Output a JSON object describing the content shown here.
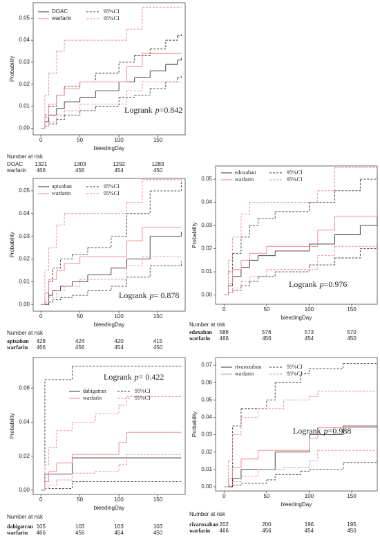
{
  "chart_data": [
    {
      "type": "line",
      "step": true,
      "xlabel": "bleedingDay",
      "ylabel": "Probability",
      "xlim": [
        -10,
        185
      ],
      "xticks": [
        0,
        50,
        100,
        150
      ],
      "ylim": [
        -0.003,
        0.057
      ],
      "yticks": [
        {
          "value": 0,
          "label": "0.00"
        },
        {
          "value": 0.01,
          "label": "0.01"
        },
        {
          "value": 0.02,
          "label": "0.02"
        },
        {
          "value": 0.03,
          "label": "0.03"
        },
        {
          "value": 0.04,
          "label": "0.04"
        },
        {
          "value": 0.05,
          "label": "0.05"
        }
      ],
      "legend": "upper left",
      "series": [
        {
          "name": "DOAC",
          "color": "#333333",
          "ci_name": "95%CI",
          "x": [
            0,
            5,
            10,
            20,
            30,
            50,
            70,
            100,
            120,
            140,
            160,
            175,
            180
          ],
          "values": [
            0,
            0.003,
            0.006,
            0.009,
            0.012,
            0.014,
            0.017,
            0.021,
            0.023,
            0.026,
            0.029,
            0.031,
            0.032
          ],
          "ci_upper": [
            0,
            0.006,
            0.01,
            0.015,
            0.019,
            0.021,
            0.025,
            0.03,
            0.033,
            0.036,
            0.04,
            0.042,
            0.043
          ],
          "ci_lower": [
            0,
            0.001,
            0.002,
            0.004,
            0.006,
            0.008,
            0.01,
            0.014,
            0.015,
            0.018,
            0.021,
            0.023,
            0.024
          ]
        },
        {
          "name": "warfarin",
          "color": "#f0808c",
          "ci_name": "95%CI",
          "x": [
            0,
            5,
            10,
            20,
            30,
            50,
            90,
            110,
            130,
            180
          ],
          "values": [
            0,
            0.005,
            0.011,
            0.015,
            0.018,
            0.021,
            0.021,
            0.028,
            0.034,
            0.034
          ],
          "ci_upper": [
            0,
            0.015,
            0.025,
            0.035,
            0.04,
            0.04,
            0.04,
            0.045,
            0.055,
            0.055
          ],
          "ci_lower": [
            0,
            0.001,
            0.003,
            0.006,
            0.008,
            0.011,
            0.011,
            0.017,
            0.021,
            0.021
          ]
        }
      ],
      "annotation": {
        "text": "Logrank",
        "p": "p",
        "value": "=0.842"
      },
      "risk_table": {
        "title": "Number at risk",
        "rows": [
          {
            "label": "DOAC",
            "counts": [
              1321,
              1303,
              1292,
              1283
            ]
          },
          {
            "label": "warfarin",
            "counts": [
              466,
              456,
              454,
              450
            ]
          }
        ]
      }
    },
    {
      "type": "line",
      "step": true,
      "xlabel": "bleedingDay",
      "ylabel": "Probability",
      "xlim": [
        -10,
        185
      ],
      "xticks": [
        0,
        50,
        100,
        150
      ],
      "ylim": [
        -0.003,
        0.0555
      ],
      "yticks": [
        {
          "value": 0,
          "label": "0.00"
        },
        {
          "value": 0.01,
          "label": "0.01"
        },
        {
          "value": 0.02,
          "label": "0.02"
        },
        {
          "value": 0.03,
          "label": "0.03"
        },
        {
          "value": 0.04,
          "label": "0.04"
        },
        {
          "value": 0.05,
          "label": "0.05"
        }
      ],
      "legend": "upper left",
      "series": [
        {
          "name": "apixaban",
          "color": "#333333",
          "ci_name": "95%CI",
          "x": [
            0,
            10,
            15,
            25,
            40,
            60,
            90,
            110,
            140,
            180
          ],
          "values": [
            0,
            0.004,
            0.006,
            0.008,
            0.01,
            0.013,
            0.016,
            0.02,
            0.03,
            0.032
          ],
          "ci_upper": [
            0,
            0.01,
            0.016,
            0.02,
            0.022,
            0.025,
            0.03,
            0.04,
            0.05,
            0.055
          ],
          "ci_lower": [
            0,
            0.001,
            0.002,
            0.003,
            0.004,
            0.006,
            0.008,
            0.012,
            0.017,
            0.019
          ]
        },
        {
          "name": "warfarin",
          "color": "#f0808c",
          "ci_name": "95%CI",
          "x": [
            0,
            5,
            10,
            20,
            30,
            50,
            90,
            110,
            130,
            180
          ],
          "values": [
            0,
            0.005,
            0.011,
            0.015,
            0.018,
            0.021,
            0.021,
            0.028,
            0.034,
            0.034
          ],
          "ci_upper": [
            0,
            0.015,
            0.025,
            0.035,
            0.04,
            0.04,
            0.04,
            0.045,
            0.055,
            0.055
          ],
          "ci_lower": [
            0,
            0.001,
            0.003,
            0.006,
            0.008,
            0.011,
            0.011,
            0.017,
            0.021,
            0.021
          ]
        }
      ],
      "annotation": {
        "text": "Logrank",
        "p": "p",
        "value": "= 0.878"
      },
      "risk_table": {
        "title": "Number at risk",
        "rows": [
          {
            "label": "apixaban",
            "counts": [
              428,
              424,
              420,
              415
            ]
          },
          {
            "label": "warfarin",
            "counts": [
              466,
              456,
              454,
              450
            ]
          }
        ]
      }
    },
    {
      "type": "line",
      "step": true,
      "xlabel": "bleedingDay",
      "ylabel": "Probability",
      "xlim": [
        -10,
        180
      ],
      "xticks": [
        0,
        50,
        100,
        150
      ],
      "ylim": [
        -0.004,
        0.0557
      ],
      "yticks": [
        {
          "value": 0,
          "label": "0.00"
        },
        {
          "value": 0.01,
          "label": "0.01"
        },
        {
          "value": 0.02,
          "label": "0.02"
        },
        {
          "value": 0.03,
          "label": "0.03"
        },
        {
          "value": 0.04,
          "label": "0.04"
        },
        {
          "value": 0.05,
          "label": "0.05"
        }
      ],
      "legend": "upper left",
      "series": [
        {
          "name": "edoxaban",
          "color": "#333333",
          "ci_name": "95%CI",
          "x": [
            0,
            5,
            10,
            20,
            30,
            40,
            60,
            100,
            130,
            160,
            180
          ],
          "values": [
            0,
            0.004,
            0.008,
            0.012,
            0.015,
            0.017,
            0.019,
            0.022,
            0.026,
            0.03,
            0.034
          ],
          "ci_upper": [
            0,
            0.01,
            0.018,
            0.025,
            0.03,
            0.033,
            0.036,
            0.04,
            0.045,
            0.05,
            0.052
          ],
          "ci_lower": [
            0,
            0.001,
            0.002,
            0.004,
            0.006,
            0.008,
            0.01,
            0.013,
            0.016,
            0.02,
            0.022
          ]
        },
        {
          "name": "warfarin",
          "color": "#f0808c",
          "ci_name": "95%CI",
          "x": [
            0,
            5,
            10,
            20,
            30,
            50,
            90,
            110,
            130,
            180
          ],
          "values": [
            0,
            0.005,
            0.011,
            0.015,
            0.018,
            0.021,
            0.021,
            0.028,
            0.034,
            0.034
          ],
          "ci_upper": [
            0,
            0.015,
            0.025,
            0.035,
            0.04,
            0.04,
            0.04,
            0.045,
            0.055,
            0.055
          ],
          "ci_lower": [
            0,
            0.001,
            0.003,
            0.006,
            0.008,
            0.011,
            0.011,
            0.017,
            0.021,
            0.021
          ]
        }
      ],
      "annotation": {
        "text": "Logrank",
        "p": "p",
        "value": "=0.976"
      },
      "risk_table": {
        "title": "Number at risk",
        "rows": [
          {
            "label": "edoxaban",
            "counts": [
              586,
              576,
              573,
              570
            ]
          },
          {
            "label": "warfarin",
            "counts": [
              466,
              456,
              454,
              450
            ]
          }
        ]
      }
    },
    {
      "type": "line",
      "step": true,
      "xlabel": "bleedingDay",
      "ylabel": "Probability",
      "xlim": [
        -10,
        185
      ],
      "xticks": [
        0,
        50,
        100,
        150
      ],
      "ylim": [
        -0.0025,
        0.078
      ],
      "yticks": [
        {
          "value": 0,
          "label": "0.00"
        },
        {
          "value": 0.02,
          "label": "0.02"
        },
        {
          "value": 0.04,
          "label": "0.04"
        },
        {
          "value": 0.06,
          "label": "0.06"
        }
      ],
      "legend": "upper left",
      "series": [
        {
          "name": "dabigatran",
          "color": "#333333",
          "ci_name": "95%CI",
          "x": [
            0,
            5,
            40,
            180
          ],
          "values": [
            0,
            0.0095,
            0.019,
            0.019
          ],
          "ci_upper": [
            0,
            0.065,
            0.073,
            0.073
          ],
          "ci_lower": [
            0,
            0.001,
            0.005,
            0.005
          ]
        },
        {
          "name": "warfarin",
          "color": "#f0808c",
          "ci_name": "95%CI",
          "x": [
            0,
            5,
            10,
            20,
            40,
            70,
            100,
            110,
            180
          ],
          "values": [
            0,
            0.005,
            0.011,
            0.016,
            0.021,
            0.021,
            0.028,
            0.034,
            0.034
          ],
          "ci_upper": [
            0,
            0.015,
            0.025,
            0.035,
            0.04,
            0.045,
            0.05,
            0.055,
            0.055
          ],
          "ci_lower": [
            0,
            0.001,
            0.003,
            0.006,
            0.01,
            0.011,
            0.015,
            0.021,
            0.021
          ]
        }
      ],
      "annotation": {
        "text": "Logrank",
        "p": "p",
        "value": "= 0.422"
      },
      "risk_table": {
        "title": "Number at risk",
        "rows": [
          {
            "label": "dabigatran",
            "counts": [
              105,
              103,
              103,
              103
            ]
          },
          {
            "label": "warfarin",
            "counts": [
              466,
              456,
              454,
              450
            ]
          }
        ]
      }
    },
    {
      "type": "line",
      "step": true,
      "xlabel": "bleedingDay",
      "ylabel": "Probability",
      "xlim": [
        -10,
        180
      ],
      "xticks": [
        0,
        50,
        100,
        150
      ],
      "ylim": [
        -0.0024,
        0.0744
      ],
      "yticks": [
        {
          "value": 0,
          "label": "0.00"
        },
        {
          "value": 0.01,
          "label": "0.01"
        },
        {
          "value": 0.02,
          "label": "0.02"
        },
        {
          "value": 0.03,
          "label": "0.03"
        },
        {
          "value": 0.04,
          "label": "0.04"
        },
        {
          "value": 0.05,
          "label": "0.05"
        },
        {
          "value": 0.06,
          "label": "0.06"
        },
        {
          "value": 0.07,
          "label": "0.07"
        }
      ],
      "legend": "upper left",
      "series": [
        {
          "name": "rivaroxaban",
          "color": "#333333",
          "ci_name": "95%CI",
          "x": [
            0,
            10,
            20,
            50,
            60,
            90,
            100,
            140,
            180
          ],
          "values": [
            0,
            0.005,
            0.01,
            0.01,
            0.02,
            0.02,
            0.03,
            0.035,
            0.035
          ],
          "ci_upper": [
            0,
            0.035,
            0.045,
            0.05,
            0.06,
            0.065,
            0.068,
            0.071,
            0.071
          ],
          "ci_lower": [
            0,
            0.001,
            0.002,
            0.004,
            0.007,
            0.009,
            0.01,
            0.014,
            0.016
          ]
        },
        {
          "name": "warfarin",
          "color": "#f0808c",
          "ci_name": "95%CI",
          "x": [
            0,
            5,
            10,
            20,
            40,
            70,
            100,
            110,
            180
          ],
          "values": [
            0,
            0.005,
            0.011,
            0.016,
            0.021,
            0.021,
            0.028,
            0.034,
            0.034
          ],
          "ci_upper": [
            0,
            0.015,
            0.03,
            0.04,
            0.045,
            0.05,
            0.052,
            0.055,
            0.055
          ],
          "ci_lower": [
            0,
            0.001,
            0.003,
            0.006,
            0.01,
            0.011,
            0.015,
            0.021,
            0.021
          ]
        }
      ],
      "annotation": {
        "text": "Logrank",
        "p": "p",
        "value": "=0.988"
      },
      "risk_table": {
        "title": "Number at risk",
        "rows": [
          {
            "label": "rivaroxaban",
            "counts": [
              202,
              200,
              196,
              195
            ]
          },
          {
            "label": "warfarin",
            "counts": [
              466,
              456,
              454,
              450
            ]
          }
        ]
      }
    }
  ]
}
